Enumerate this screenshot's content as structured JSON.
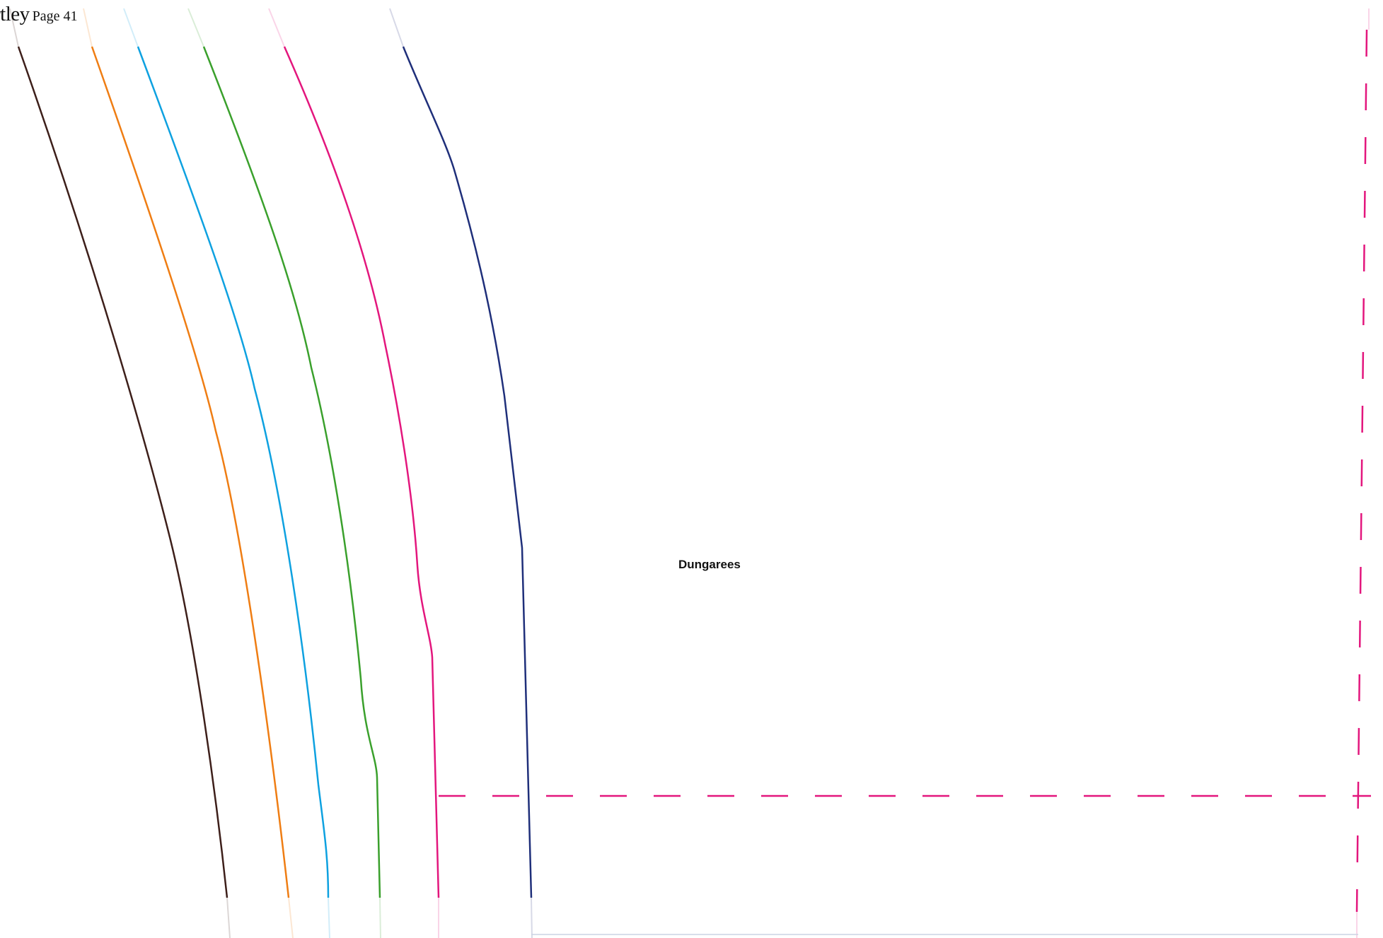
{
  "header": {
    "brand": "rtley",
    "page_label": "Page 41"
  },
  "piece_label": "Dungarees",
  "colors": {
    "size_lines": [
      "#3d1f1a",
      "#ef7d13",
      "#0ea1e0",
      "#3aa02c",
      "#e3167d",
      "#1f2f7a"
    ],
    "seam_allowance": "#e3167d",
    "fold_line": "#1f2f7a"
  }
}
